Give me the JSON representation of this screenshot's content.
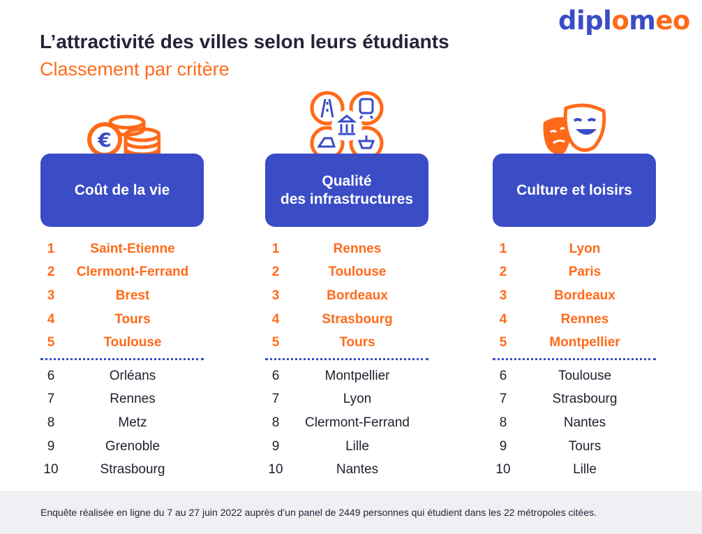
{
  "logo": {
    "part1": "dipl",
    "part2": "o",
    "part3": "m",
    "part4": "eo"
  },
  "title": "L’attractivité des villes selon leurs étudiants",
  "subtitle": "Classement par critère",
  "columns": [
    {
      "heading_line1": "Coût de la vie",
      "heading_line2": "",
      "icon": "euro-coins-icon",
      "rankings": [
        {
          "rank": "1",
          "city": "Saint-Etienne"
        },
        {
          "rank": "2",
          "city": "Clermont-Ferrand"
        },
        {
          "rank": "3",
          "city": "Brest"
        },
        {
          "rank": "4",
          "city": "Tours"
        },
        {
          "rank": "5",
          "city": "Toulouse"
        },
        {
          "rank": "6",
          "city": "Orléans"
        },
        {
          "rank": "7",
          "city": "Rennes"
        },
        {
          "rank": "8",
          "city": "Metz"
        },
        {
          "rank": "9",
          "city": "Grenoble"
        },
        {
          "rank": "10",
          "city": "Strasbourg"
        }
      ]
    },
    {
      "heading_line1": "Qualité",
      "heading_line2": "des infrastructures",
      "icon": "transport-infrastructure-icon",
      "rankings": [
        {
          "rank": "1",
          "city": "Rennes"
        },
        {
          "rank": "2",
          "city": "Toulouse"
        },
        {
          "rank": "3",
          "city": "Bordeaux"
        },
        {
          "rank": "4",
          "city": "Strasbourg"
        },
        {
          "rank": "5",
          "city": "Tours"
        },
        {
          "rank": "6",
          "city": "Montpellier"
        },
        {
          "rank": "7",
          "city": "Lyon"
        },
        {
          "rank": "8",
          "city": "Clermont-Ferrand"
        },
        {
          "rank": "9",
          "city": "Lille"
        },
        {
          "rank": "10",
          "city": "Nantes"
        }
      ]
    },
    {
      "heading_line1": "Culture et loisirs",
      "heading_line2": "",
      "icon": "theater-masks-icon",
      "rankings": [
        {
          "rank": "1",
          "city": "Lyon"
        },
        {
          "rank": "2",
          "city": "Paris"
        },
        {
          "rank": "3",
          "city": "Bordeaux"
        },
        {
          "rank": "4",
          "city": "Rennes"
        },
        {
          "rank": "5",
          "city": "Montpellier"
        },
        {
          "rank": "6",
          "city": "Toulouse"
        },
        {
          "rank": "7",
          "city": "Strasbourg"
        },
        {
          "rank": "8",
          "city": "Nantes"
        },
        {
          "rank": "9",
          "city": "Tours"
        },
        {
          "rank": "10",
          "city": "Lille"
        }
      ]
    }
  ],
  "footer": "Enquête réalisée en ligne du 7 au 27 juin 2022 auprès d’un panel de 2449 personnes qui étudient dans les 22 métropoles citées.",
  "colors": {
    "accent_blue": "#3a4cc6",
    "accent_orange": "#ff6a1a",
    "footer_bg": "#eff0f3"
  }
}
